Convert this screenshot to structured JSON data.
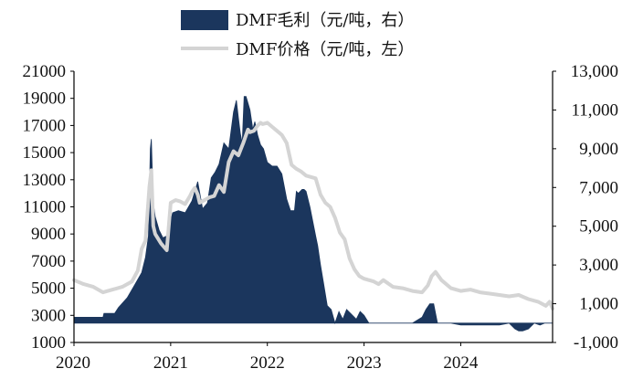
{
  "chart_data": {
    "type": "line",
    "title": "",
    "xlabel": "",
    "legend": {
      "placement": "top-center",
      "entries": [
        {
          "label": "DMF毛利（元/吨，右）",
          "style": "area",
          "color": "#1b365d"
        },
        {
          "label": "DMF价格（元/吨，左）",
          "style": "line",
          "color": "#d4d4d4"
        }
      ]
    },
    "x_axis": {
      "ticks": [
        "2020",
        "2021",
        "2022",
        "2023",
        "2024"
      ],
      "tick_positions": [
        2020,
        2021,
        2022,
        2023,
        2024
      ],
      "range": [
        2020,
        2024.95
      ]
    },
    "y_left": {
      "ylabel": "",
      "ylim": [
        1000,
        21000
      ],
      "ticks": [
        "1000",
        "3000",
        "5000",
        "7000",
        "9000",
        "11000",
        "13000",
        "15000",
        "17000",
        "19000",
        "21000"
      ],
      "tick_values": [
        1000,
        3000,
        5000,
        7000,
        9000,
        11000,
        13000,
        15000,
        17000,
        19000,
        21000
      ]
    },
    "y_right": {
      "ylabel": "",
      "ylim": [
        -1000,
        13000
      ],
      "ticks": [
        "-1,000",
        "1,000",
        "3,000",
        "5,000",
        "7,000",
        "9,000",
        "11,000",
        "13,000"
      ],
      "tick_values": [
        -1000,
        1000,
        3000,
        5000,
        7000,
        9000,
        11000,
        13000
      ]
    },
    "grid": false,
    "series": [
      {
        "name": "DMF毛利（元/吨，右）",
        "axis": "right",
        "type": "area",
        "color": "#1b365d",
        "x": [
          2020.0,
          2020.3,
          2020.31,
          2020.42,
          2020.46,
          2020.55,
          2020.62,
          2020.7,
          2020.74,
          2020.77,
          2020.79,
          2020.8,
          2020.82,
          2020.84,
          2020.88,
          2020.92,
          2020.96,
          2021.02,
          2021.08,
          2021.15,
          2021.22,
          2021.28,
          2021.33,
          2021.38,
          2021.42,
          2021.46,
          2021.5,
          2021.55,
          2021.6,
          2021.65,
          2021.68,
          2021.7,
          2021.72,
          2021.74,
          2021.76,
          2021.78,
          2021.82,
          2021.85,
          2021.87,
          2021.9,
          2021.93,
          2021.96,
          2022.0,
          2022.05,
          2022.1,
          2022.15,
          2022.2,
          2022.24,
          2022.28,
          2022.3,
          2022.32,
          2022.34,
          2022.36,
          2022.38,
          2022.4,
          2022.44,
          2022.48,
          2022.5,
          2022.52,
          2022.55,
          2022.58,
          2022.62,
          2022.66,
          2022.7,
          2022.74,
          2022.78,
          2022.82,
          2022.86,
          2022.92,
          2022.96,
          2023.0,
          2023.05,
          2023.1,
          2023.2,
          2023.3,
          2023.4,
          2023.5,
          2023.6,
          2023.64,
          2023.68,
          2023.72,
          2023.76,
          2023.8,
          2023.84,
          2023.9,
          2024.0,
          2024.1,
          2024.2,
          2024.3,
          2024.4,
          2024.5,
          2024.56,
          2024.6,
          2024.64,
          2024.7,
          2024.76,
          2024.82,
          2024.87,
          2024.92,
          2024.95
        ],
        "y": [
          300,
          300,
          500,
          500,
          800,
          1300,
          1900,
          2600,
          3400,
          4500,
          9000,
          9500,
          6200,
          5500,
          4800,
          4400,
          4500,
          5700,
          5800,
          5700,
          6300,
          7300,
          5900,
          6200,
          7500,
          7800,
          8200,
          9300,
          9000,
          10900,
          11500,
          10600,
          9800,
          9300,
          11700,
          11700,
          11000,
          10000,
          10400,
          9700,
          9200,
          9000,
          8300,
          8100,
          8100,
          7700,
          6400,
          5800,
          5800,
          6800,
          6700,
          6800,
          6900,
          6900,
          6800,
          6000,
          5000,
          4500,
          4000,
          3000,
          2100,
          900,
          700,
          0,
          600,
          200,
          700,
          500,
          200,
          600,
          400,
          0,
          0,
          0,
          0,
          0,
          0,
          300,
          700,
          1000,
          1000,
          0,
          0,
          0,
          0,
          -100,
          -100,
          -100,
          -100,
          -100,
          0,
          -300,
          -400,
          -400,
          -300,
          0,
          -100,
          0,
          0,
          0
        ]
      },
      {
        "name": "DMF价格（元/吨，左）",
        "axis": "left",
        "type": "line",
        "color": "#d4d4d4",
        "x": [
          2020.0,
          2020.1,
          2020.2,
          2020.3,
          2020.4,
          2020.5,
          2020.6,
          2020.66,
          2020.7,
          2020.74,
          2020.78,
          2020.8,
          2020.82,
          2020.84,
          2020.9,
          2020.96,
          2021.0,
          2021.05,
          2021.1,
          2021.15,
          2021.2,
          2021.22,
          2021.25,
          2021.28,
          2021.3,
          2021.35,
          2021.4,
          2021.45,
          2021.5,
          2021.55,
          2021.6,
          2021.65,
          2021.7,
          2021.75,
          2021.78,
          2021.8,
          2021.82,
          2021.86,
          2021.9,
          2021.93,
          2021.95,
          2022.0,
          2022.05,
          2022.1,
          2022.15,
          2022.2,
          2022.25,
          2022.3,
          2022.35,
          2022.4,
          2022.45,
          2022.5,
          2022.55,
          2022.6,
          2022.65,
          2022.7,
          2022.75,
          2022.8,
          2022.85,
          2022.9,
          2022.95,
          2023.0,
          2023.05,
          2023.1,
          2023.15,
          2023.2,
          2023.3,
          2023.4,
          2023.5,
          2023.6,
          2023.66,
          2023.7,
          2023.74,
          2023.8,
          2023.9,
          2024.0,
          2024.1,
          2024.2,
          2024.3,
          2024.4,
          2024.5,
          2024.6,
          2024.7,
          2024.8,
          2024.88,
          2024.92,
          2024.95
        ],
        "y": [
          5600,
          5300,
          5100,
          4700,
          4900,
          5100,
          5500,
          6300,
          7900,
          8500,
          12500,
          13700,
          9600,
          9000,
          8300,
          7800,
          11300,
          11500,
          11400,
          11200,
          11800,
          12100,
          12400,
          11900,
          11300,
          11500,
          11700,
          11800,
          12600,
          12100,
          14300,
          15100,
          14800,
          15700,
          16300,
          16700,
          16500,
          16600,
          17000,
          17200,
          17100,
          17200,
          16900,
          16600,
          16300,
          15700,
          14100,
          13800,
          13600,
          13300,
          13200,
          13100,
          11900,
          11300,
          11000,
          10200,
          9100,
          8600,
          7200,
          6400,
          5900,
          5700,
          5600,
          5500,
          5300,
          5600,
          5100,
          5000,
          4800,
          4700,
          5200,
          5900,
          6200,
          5600,
          5000,
          4800,
          4900,
          4700,
          4600,
          4500,
          4400,
          4500,
          4200,
          4000,
          3700,
          4000,
          3500
        ]
      }
    ]
  }
}
